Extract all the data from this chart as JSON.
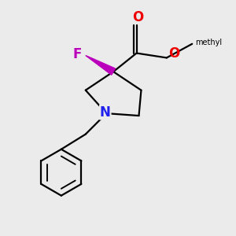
{
  "bg_color": "#ebebeb",
  "bond_color": "#000000",
  "bond_width": 1.6,
  "N_color": "#2020ee",
  "O_color": "#ee0000",
  "F_color": "#bb00bb",
  "figsize": [
    3.0,
    3.0
  ],
  "dpi": 100,
  "xlim": [
    0,
    10
  ],
  "ylim": [
    0,
    10
  ]
}
